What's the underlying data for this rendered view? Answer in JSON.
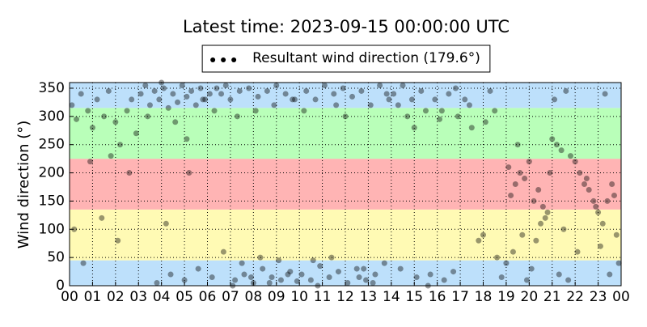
{
  "chart_data": {
    "type": "scatter",
    "title": "Latest time: 2023-09-15 00:00:00 UTC",
    "y_label": "Wind direction (°)",
    "xlim": [
      0,
      24
    ],
    "ylim": [
      0,
      360
    ],
    "xticks": [
      {
        "value": 0,
        "label": "00"
      },
      {
        "value": 1,
        "label": "01"
      },
      {
        "value": 2,
        "label": "02"
      },
      {
        "value": 3,
        "label": "03"
      },
      {
        "value": 4,
        "label": "04"
      },
      {
        "value": 5,
        "label": "05"
      },
      {
        "value": 6,
        "label": "06"
      },
      {
        "value": 7,
        "label": "07"
      },
      {
        "value": 8,
        "label": "08"
      },
      {
        "value": 9,
        "label": "09"
      },
      {
        "value": 10,
        "label": "10"
      },
      {
        "value": 11,
        "label": "11"
      },
      {
        "value": 12,
        "label": "12"
      },
      {
        "value": 13,
        "label": "13"
      },
      {
        "value": 14,
        "label": "14"
      },
      {
        "value": 15,
        "label": "15"
      },
      {
        "value": 16,
        "label": "16"
      },
      {
        "value": 17,
        "label": "17"
      },
      {
        "value": 18,
        "label": "18"
      },
      {
        "value": 19,
        "label": "19"
      },
      {
        "value": 20,
        "label": "20"
      },
      {
        "value": 21,
        "label": "21"
      },
      {
        "value": 22,
        "label": "22"
      },
      {
        "value": 23,
        "label": "23"
      },
      {
        "value": 24,
        "label": "00"
      }
    ],
    "yticks": [
      0,
      50,
      100,
      150,
      200,
      250,
      300,
      350
    ],
    "grid": true,
    "legend": "upper center",
    "bands": [
      {
        "from": 0,
        "to": 45,
        "color": "#bde0fb"
      },
      {
        "from": 45,
        "to": 135,
        "color": "#fffab4"
      },
      {
        "from": 135,
        "to": 225,
        "color": "#ffb4b4"
      },
      {
        "from": 225,
        "to": 315,
        "color": "#b9ffb9"
      },
      {
        "from": 315,
        "to": 360,
        "color": "#bde0fb"
      }
    ],
    "x": [
      0.1,
      0.3,
      0.5,
      0.8,
      1.0,
      1.2,
      1.5,
      1.7,
      2.0,
      2.2,
      2.5,
      2.7,
      2.9,
      0.2,
      0.9,
      1.4,
      2.1,
      2.6,
      0.6,
      1.8,
      3.1,
      3.3,
      3.5,
      3.7,
      3.9,
      4.1,
      4.3,
      4.5,
      4.7,
      4.9,
      5.1,
      5.3,
      5.5,
      5.7,
      5.9,
      6.1,
      6.3,
      3.4,
      4.0,
      4.6,
      5.2,
      5.8,
      6.4,
      3.8,
      4.4,
      5.0,
      5.6,
      6.2,
      5.1,
      4.2,
      6.6,
      6.8,
      7.0,
      7.2,
      7.4,
      7.6,
      7.8,
      8.0,
      8.2,
      8.4,
      8.6,
      8.8,
      9.0,
      9.2,
      9.4,
      9.6,
      9.8,
      6.7,
      7.1,
      7.5,
      7.9,
      8.3,
      8.7,
      9.1,
      9.5,
      9.9,
      7.3,
      8.1,
      8.9,
      9.7,
      10.1,
      10.3,
      10.5,
      10.7,
      10.9,
      11.1,
      11.3,
      11.5,
      11.7,
      11.9,
      12.1,
      12.3,
      12.5,
      12.7,
      12.9,
      13.1,
      13.3,
      13.5,
      13.7,
      13.9,
      10.2,
      10.8,
      11.4,
      12.0,
      12.6,
      13.2,
      13.8,
      10.6,
      11.6,
      12.8,
      14.1,
      14.3,
      14.5,
      14.7,
      14.9,
      15.1,
      15.3,
      15.5,
      15.7,
      15.9,
      16.1,
      16.3,
      16.5,
      16.7,
      16.9,
      14.4,
      15.0,
      15.6,
      16.2,
      16.8,
      17.2,
      17.5,
      17.8,
      18.1,
      18.3,
      18.6,
      18.8,
      17.4,
      18.0,
      18.5,
      19.1,
      19.2,
      19.4,
      19.6,
      19.8,
      20.0,
      20.2,
      20.4,
      20.6,
      20.8,
      19.3,
      19.7,
      20.1,
      20.5,
      20.9,
      19.5,
      19.9,
      20.3,
      20.7,
      19.0,
      21.0,
      21.2,
      21.4,
      21.6,
      21.8,
      22.0,
      22.2,
      22.4,
      22.6,
      22.8,
      21.1,
      21.5,
      22.1,
      22.5,
      22.9,
      21.3,
      21.7,
      23.0,
      23.2,
      23.4,
      23.6,
      23.8,
      23.9,
      23.1,
      23.3,
      23.5,
      23.7
    ],
    "series": [
      {
        "name": "Resultant wind direction (179.6°)",
        "color": "#000000",
        "alpha": 0.4,
        "values": [
          320,
          295,
          340,
          310,
          280,
          330,
          300,
          345,
          290,
          250,
          310,
          330,
          270,
          100,
          220,
          120,
          80,
          200,
          40,
          230,
          340,
          355,
          320,
          345,
          330,
          350,
          315,
          340,
          325,
          355,
          335,
          345,
          320,
          350,
          330,
          340,
          310,
          300,
          360,
          290,
          200,
          330,
          350,
          5,
          20,
          10,
          30,
          15,
          260,
          110,
          340,
          355,
          330,
          10,
          345,
          20,
          350,
          5,
          335,
          30,
          345,
          15,
          355,
          10,
          340,
          25,
          330,
          60,
          0,
          40,
          15,
          50,
          5,
          45,
          20,
          8,
          300,
          310,
          320,
          330,
          20,
          345,
          10,
          330,
          35,
          355,
          15,
          340,
          25,
          350,
          5,
          335,
          30,
          345,
          10,
          320,
          20,
          355,
          40,
          330,
          310,
          0,
          50,
          300,
          15,
          5,
          340,
          45,
          320,
          30,
          340,
          320,
          355,
          300,
          330,
          15,
          345,
          310,
          20,
          330,
          295,
          10,
          340,
          25,
          300,
          30,
          280,
          0,
          310,
          350,
          330,
          280,
          80,
          290,
          345,
          50,
          15,
          320,
          90,
          310,
          210,
          160,
          180,
          200,
          190,
          220,
          150,
          170,
          140,
          130,
          60,
          90,
          30,
          110,
          200,
          250,
          10,
          80,
          120,
          40,
          260,
          250,
          240,
          345,
          230,
          220,
          200,
          180,
          170,
          150,
          330,
          100,
          60,
          190,
          140,
          20,
          10,
          130,
          110,
          150,
          180,
          90,
          40,
          70,
          340,
          20,
          160
        ]
      }
    ]
  }
}
